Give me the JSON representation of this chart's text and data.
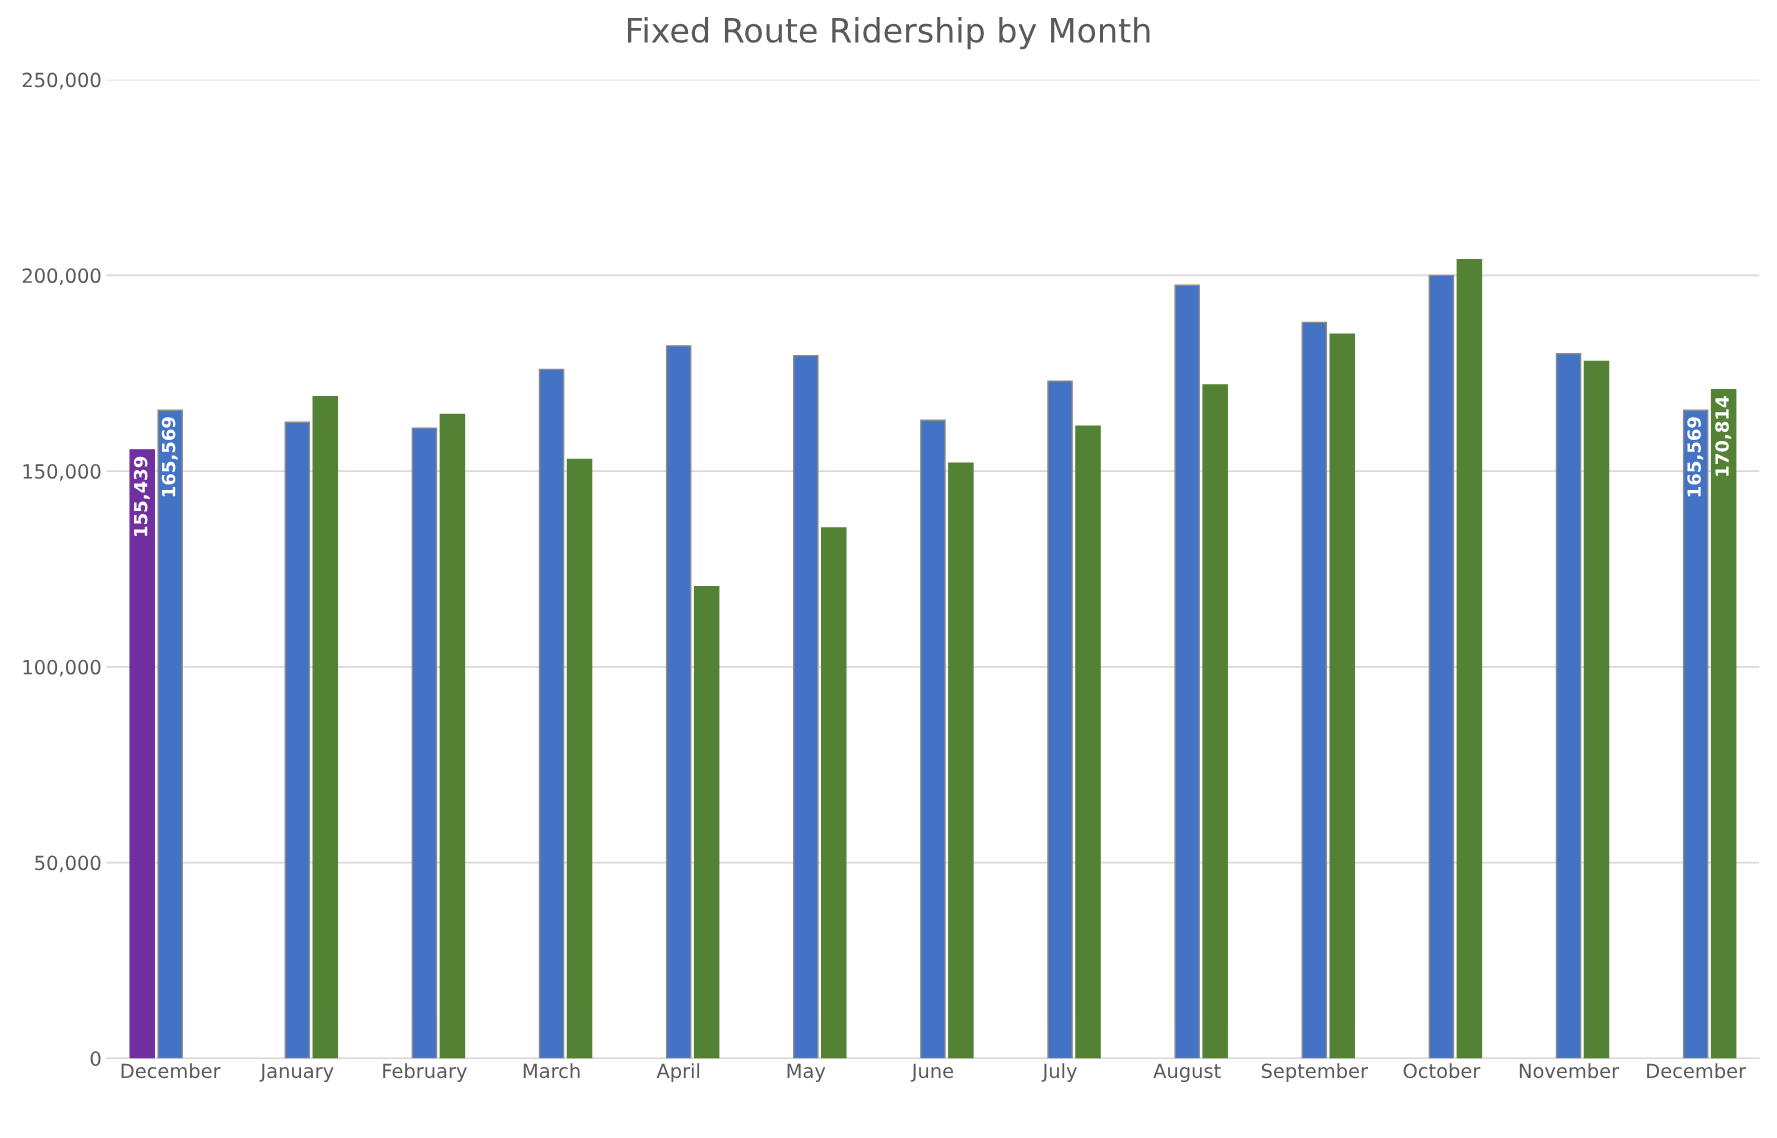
{
  "chart_data": {
    "type": "bar",
    "title": "Fixed Route Ridership by Month",
    "categories": [
      "December",
      "January",
      "February",
      "March",
      "April",
      "May",
      "June",
      "July",
      "August",
      "September",
      "October",
      "November",
      "December"
    ],
    "series": [
      {
        "color": "#7030a0",
        "values": [
          155439,
          null,
          null,
          null,
          null,
          null,
          null,
          null,
          null,
          null,
          null,
          null,
          null
        ],
        "value_labels": [
          "155,439",
          null,
          null,
          null,
          null,
          null,
          null,
          null,
          null,
          null,
          null,
          null,
          null
        ]
      },
      {
        "color": "#4472c4",
        "values": [
          165569,
          162500,
          161000,
          176000,
          182000,
          179500,
          163000,
          173000,
          197500,
          188000,
          200000,
          180000,
          165569
        ],
        "value_labels": [
          "165,569",
          null,
          null,
          null,
          null,
          null,
          null,
          null,
          null,
          null,
          null,
          null,
          "165,569"
        ]
      },
      {
        "color": "#548235",
        "values": [
          null,
          169000,
          164500,
          153000,
          120500,
          135500,
          152000,
          161500,
          172000,
          185000,
          204000,
          178000,
          170814
        ],
        "value_labels": [
          null,
          null,
          null,
          null,
          null,
          null,
          null,
          null,
          null,
          null,
          null,
          null,
          "170,814"
        ]
      }
    ],
    "ylim": [
      0,
      250000
    ],
    "yticks": [
      {
        "value": 0,
        "label": "0"
      },
      {
        "value": 50000,
        "label": "50,000"
      },
      {
        "value": 100000,
        "label": "100,000"
      },
      {
        "value": 150000,
        "label": "150,000"
      },
      {
        "value": 200000,
        "label": "200,000"
      },
      {
        "value": 250000,
        "label": "250,000"
      }
    ],
    "grid": "y",
    "legend": false
  }
}
